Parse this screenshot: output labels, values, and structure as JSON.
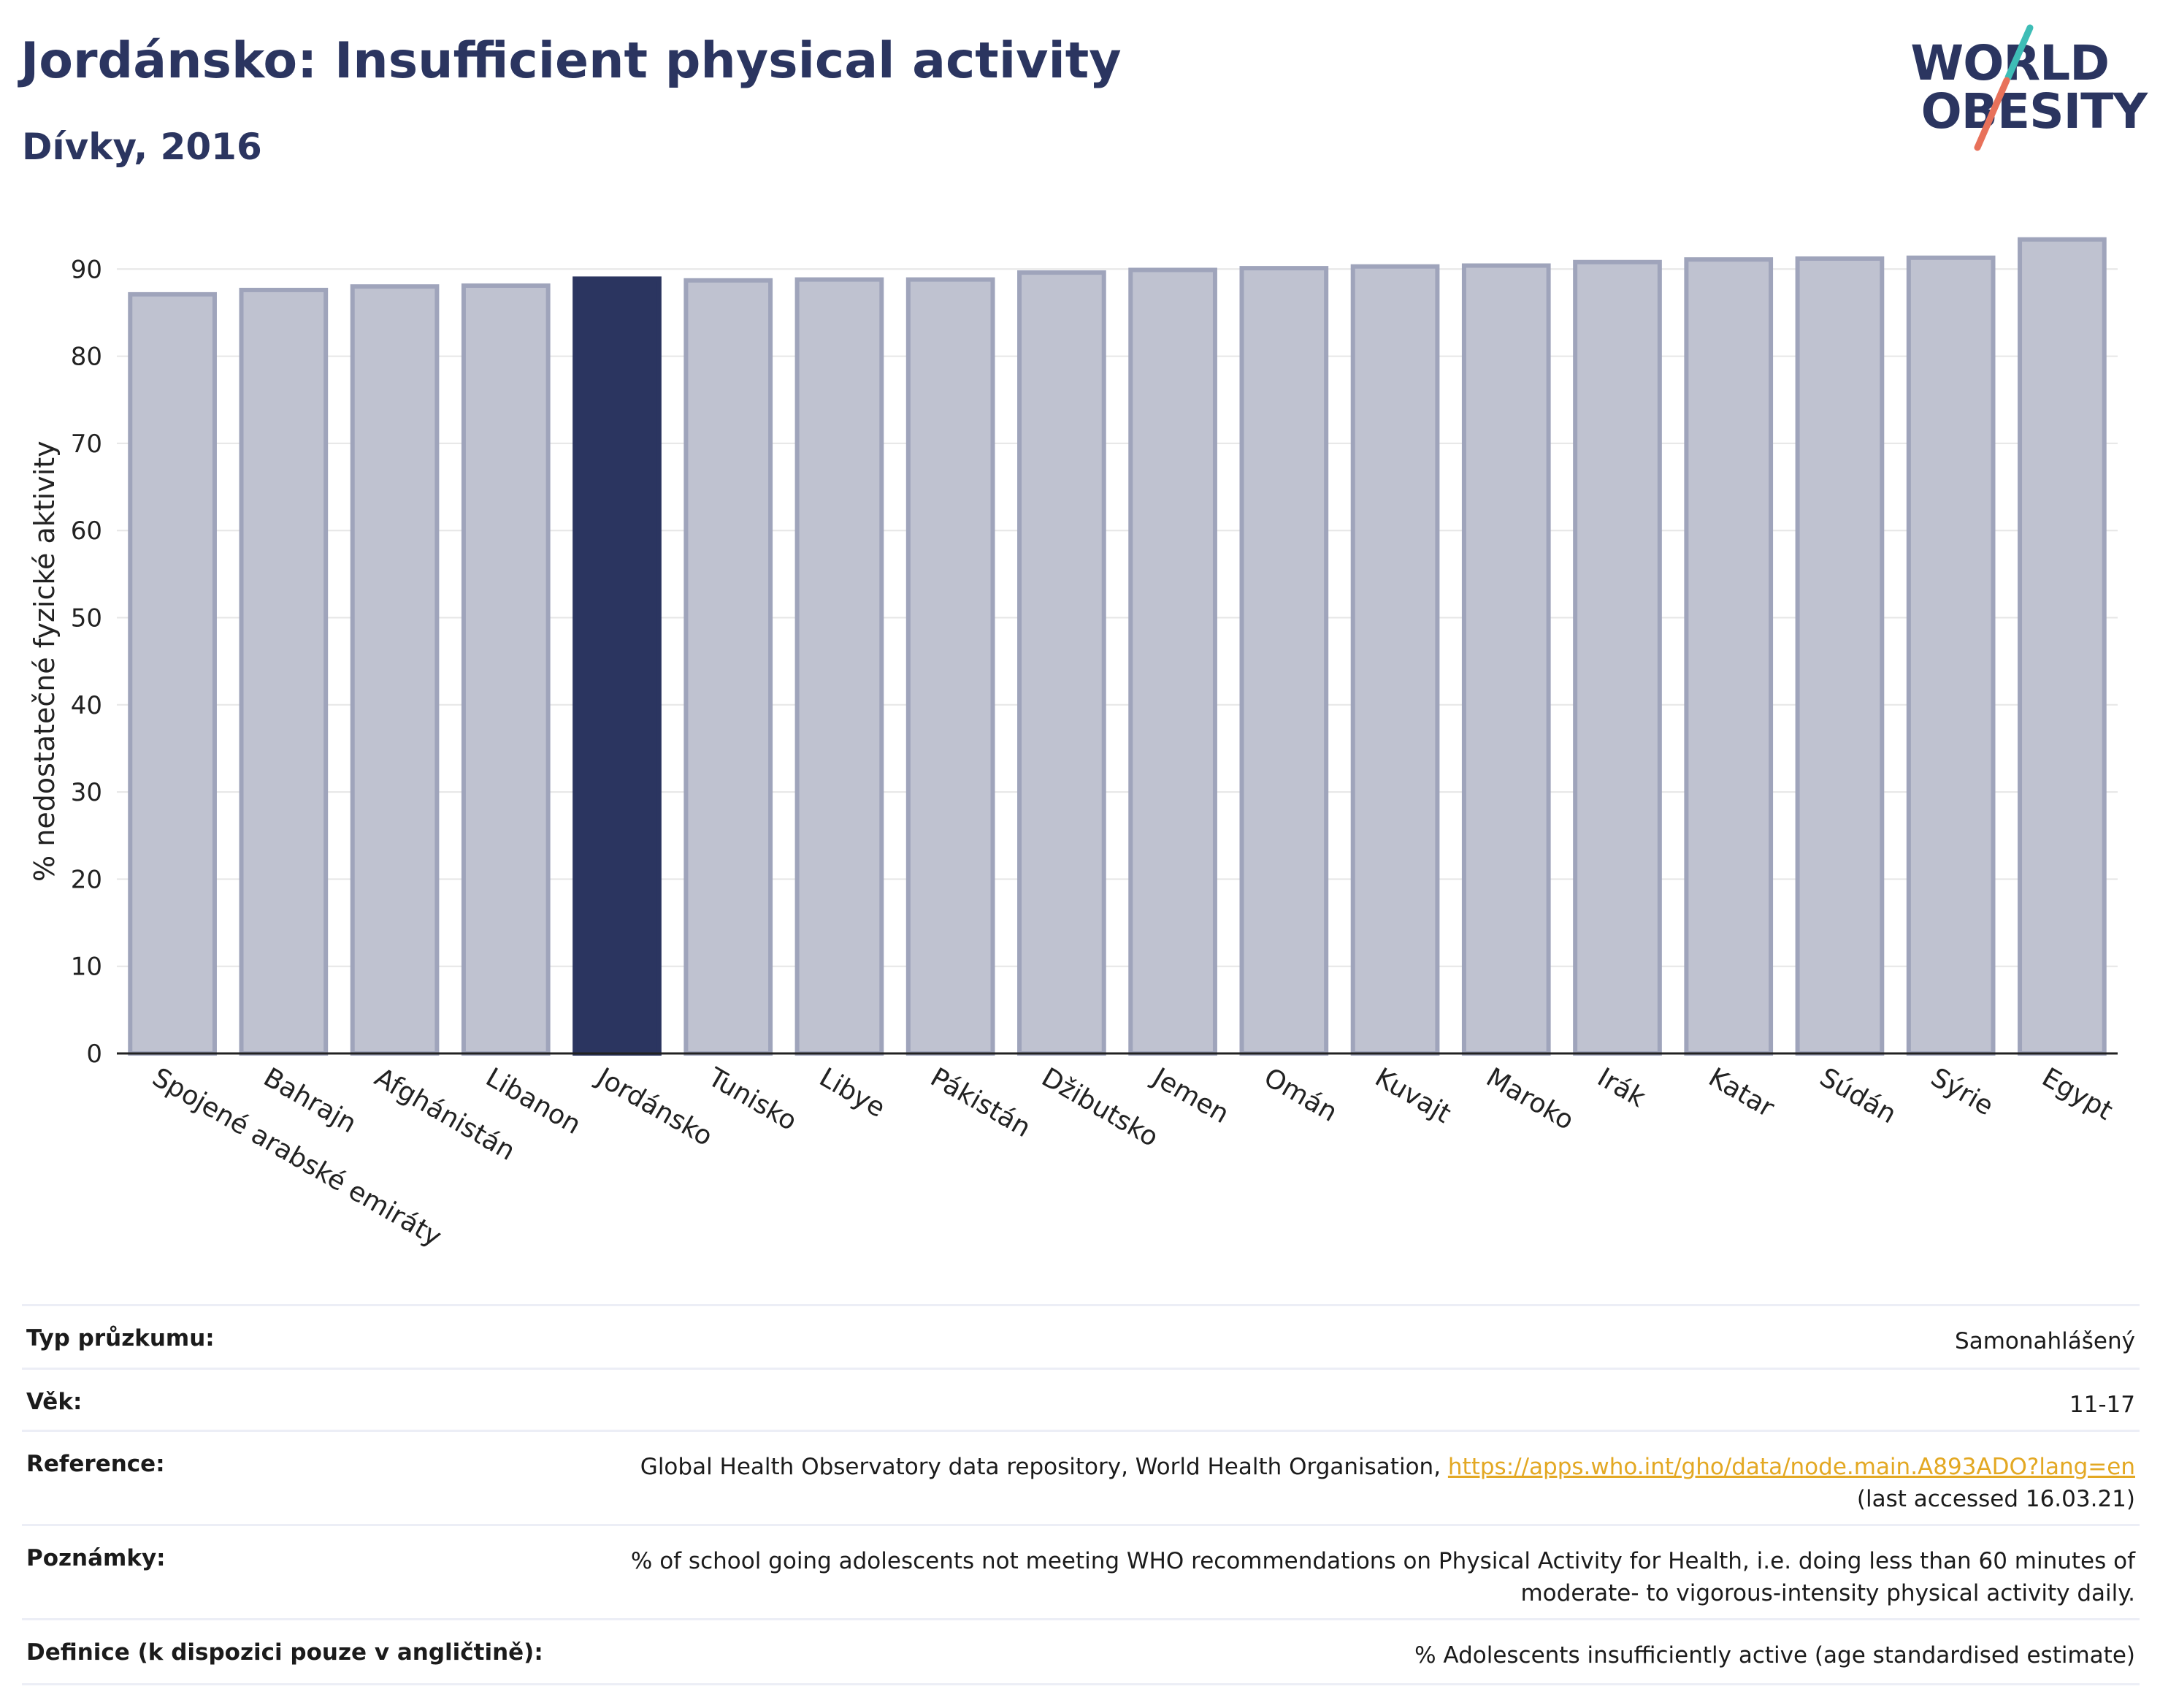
{
  "header": {
    "title": "Jordánsko: Insufficient physical activity",
    "subtitle": "Dívky, 2016"
  },
  "logo": {
    "line1": "WORLD",
    "line2": "OBESITY",
    "colors": {
      "text": "#2b3560",
      "slash_top": "#3ebdb6",
      "slash_bottom": "#e8715a"
    }
  },
  "colors": {
    "highlight": "#2b3560",
    "bar": "#bfc2d0",
    "bar_border": "#9fa4bb",
    "grid": "#e6e6e6"
  },
  "chart_data": {
    "type": "bar",
    "ylabel": "% nedostatečné fyzické aktivity",
    "ylim": [
      0,
      96
    ],
    "yticks": [
      0,
      10,
      20,
      30,
      40,
      50,
      60,
      70,
      80,
      90
    ],
    "grid": true,
    "highlight": "Jordánsko",
    "categories": [
      "Spojené arabské emiráty",
      "Bahrajn",
      "Afghánistán",
      "Libanon",
      "Jordánsko",
      "Tunisko",
      "Libye",
      "Pákistán",
      "Džibutsko",
      "Jemen",
      "Omán",
      "Kuvajt",
      "Maroko",
      "Irák",
      "Katar",
      "Súdán",
      "Sýrie",
      "Egypt"
    ],
    "values": [
      87.1,
      87.6,
      88.0,
      88.1,
      88.9,
      88.7,
      88.8,
      88.8,
      89.6,
      89.9,
      90.1,
      90.3,
      90.4,
      90.8,
      91.1,
      91.2,
      91.3,
      93.4
    ]
  },
  "meta": [
    {
      "label": "Typ průzkumu:",
      "value": "Samonahlášený"
    },
    {
      "label": "Věk:",
      "value": "11-17"
    },
    {
      "label": "Reference:",
      "value": "Global Health Observatory data repository, World Health Organisation, ",
      "link": "https://apps.who.int/gho/data/node.main.A893ADO?lang=en",
      "value2": "(last accessed 16.03.21)"
    },
    {
      "label": "Poznámky:",
      "value": "% of school going adolescents not meeting WHO recommendations on Physical Activity for Health, i.e. doing less than 60 minutes of",
      "value2": "moderate- to vigorous-intensity physical activity daily."
    },
    {
      "label": "Definice (k dispozici pouze v angličtině):",
      "value": "% Adolescents insufficiently active (age standardised estimate)"
    }
  ]
}
